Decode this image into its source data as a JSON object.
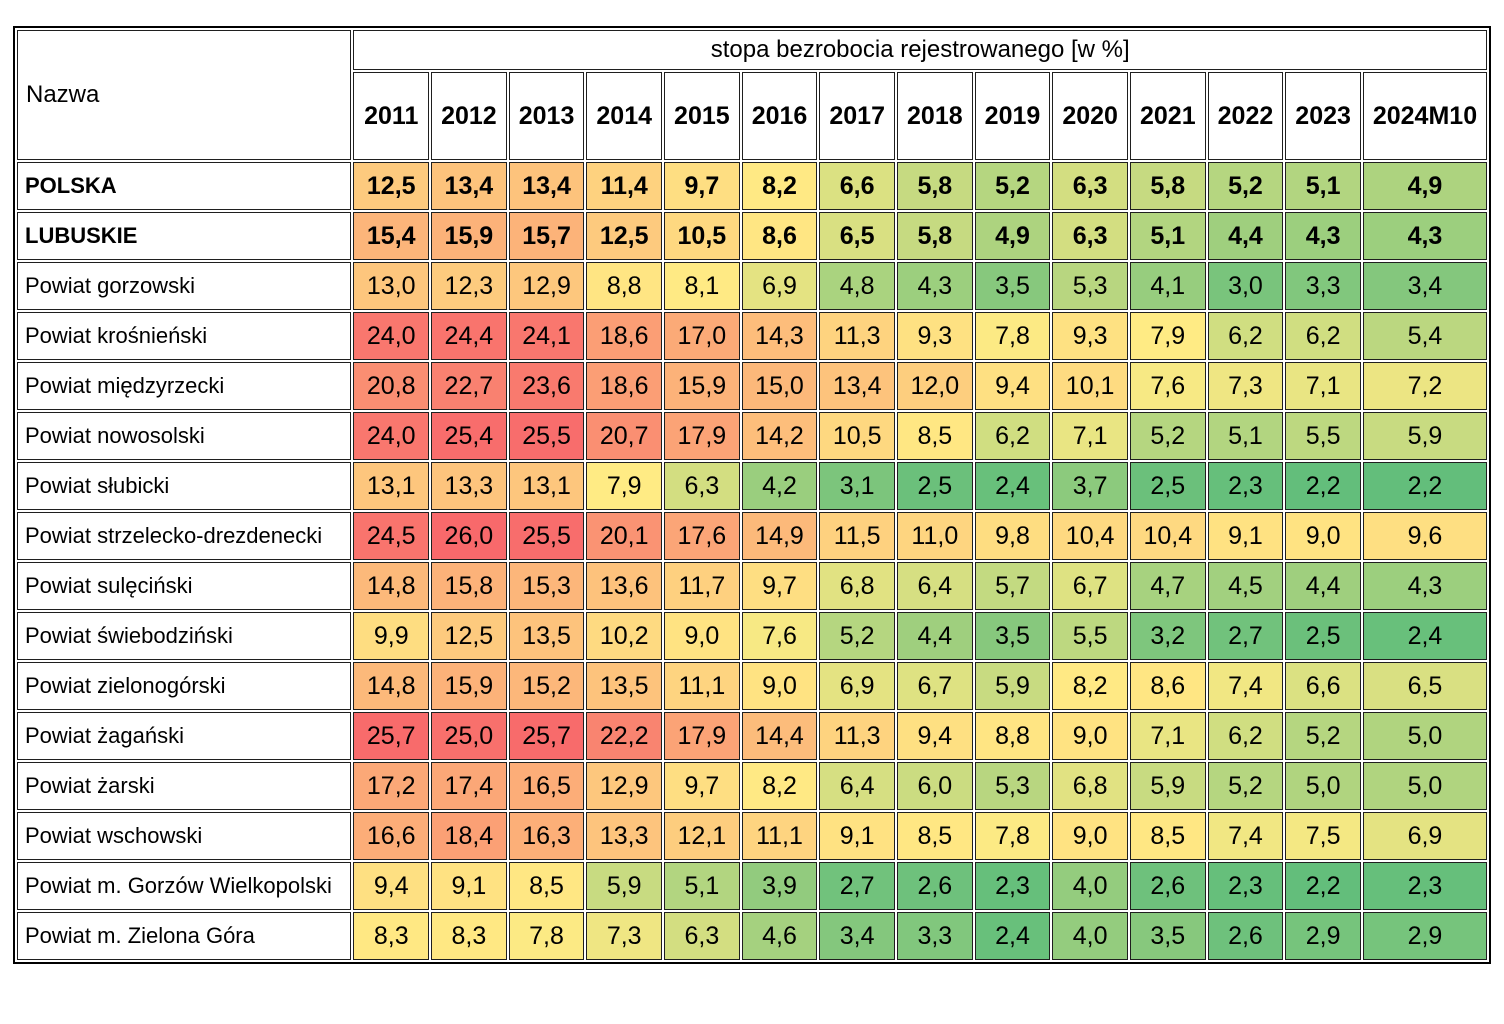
{
  "chart_data": {
    "type": "heatmap",
    "title": "stopa bezrobocia rejestrowanego [w %]",
    "row_header_label": "Nazwa",
    "x_labels": [
      "2011",
      "2012",
      "2013",
      "2014",
      "2015",
      "2016",
      "2017",
      "2018",
      "2019",
      "2020",
      "2021",
      "2022",
      "2023",
      "2024M10"
    ],
    "rows": [
      {
        "name": "POLSKA",
        "bold": true,
        "values": [
          "12,5",
          "13,4",
          "13,4",
          "11,4",
          "9,7",
          "8,2",
          "6,6",
          "5,8",
          "5,2",
          "6,3",
          "5,8",
          "5,2",
          "5,1",
          "4,9"
        ]
      },
      {
        "name": "LUBUSKIE",
        "bold": true,
        "values": [
          "15,4",
          "15,9",
          "15,7",
          "12,5",
          "10,5",
          "8,6",
          "6,5",
          "5,8",
          "4,9",
          "6,3",
          "5,1",
          "4,4",
          "4,3",
          "4,3"
        ]
      },
      {
        "name": "Powiat gorzowski",
        "bold": false,
        "values": [
          "13,0",
          "12,3",
          "12,9",
          "8,8",
          "8,1",
          "6,9",
          "4,8",
          "4,3",
          "3,5",
          "5,3",
          "4,1",
          "3,0",
          "3,3",
          "3,4"
        ]
      },
      {
        "name": "Powiat krośnieński",
        "bold": false,
        "values": [
          "24,0",
          "24,4",
          "24,1",
          "18,6",
          "17,0",
          "14,3",
          "11,3",
          "9,3",
          "7,8",
          "9,3",
          "7,9",
          "6,2",
          "6,2",
          "5,4"
        ]
      },
      {
        "name": "Powiat międzyrzecki",
        "bold": false,
        "values": [
          "20,8",
          "22,7",
          "23,6",
          "18,6",
          "15,9",
          "15,0",
          "13,4",
          "12,0",
          "9,4",
          "10,1",
          "7,6",
          "7,3",
          "7,1",
          "7,2"
        ]
      },
      {
        "name": "Powiat nowosolski",
        "bold": false,
        "values": [
          "24,0",
          "25,4",
          "25,5",
          "20,7",
          "17,9",
          "14,2",
          "10,5",
          "8,5",
          "6,2",
          "7,1",
          "5,2",
          "5,1",
          "5,5",
          "5,9"
        ]
      },
      {
        "name": "Powiat słubicki",
        "bold": false,
        "values": [
          "13,1",
          "13,3",
          "13,1",
          "7,9",
          "6,3",
          "4,2",
          "3,1",
          "2,5",
          "2,4",
          "3,7",
          "2,5",
          "2,3",
          "2,2",
          "2,2"
        ]
      },
      {
        "name": "Powiat strzelecko-drezdenecki",
        "bold": false,
        "values": [
          "24,5",
          "26,0",
          "25,5",
          "20,1",
          "17,6",
          "14,9",
          "11,5",
          "11,0",
          "9,8",
          "10,4",
          "10,4",
          "9,1",
          "9,0",
          "9,6"
        ]
      },
      {
        "name": "Powiat sulęciński",
        "bold": false,
        "values": [
          "14,8",
          "15,8",
          "15,3",
          "13,6",
          "11,7",
          "9,7",
          "6,8",
          "6,4",
          "5,7",
          "6,7",
          "4,7",
          "4,5",
          "4,4",
          "4,3"
        ]
      },
      {
        "name": "Powiat świebodziński",
        "bold": false,
        "values": [
          "9,9",
          "12,5",
          "13,5",
          "10,2",
          "9,0",
          "7,6",
          "5,2",
          "4,4",
          "3,5",
          "5,5",
          "3,2",
          "2,7",
          "2,5",
          "2,4"
        ]
      },
      {
        "name": "Powiat zielonogórski",
        "bold": false,
        "values": [
          "14,8",
          "15,9",
          "15,2",
          "13,5",
          "11,1",
          "9,0",
          "6,9",
          "6,7",
          "5,9",
          "8,2",
          "8,6",
          "7,4",
          "6,6",
          "6,5"
        ]
      },
      {
        "name": "Powiat żagański",
        "bold": false,
        "values": [
          "25,7",
          "25,0",
          "25,7",
          "22,2",
          "17,9",
          "14,4",
          "11,3",
          "9,4",
          "8,8",
          "9,0",
          "7,1",
          "6,2",
          "5,2",
          "5,0"
        ]
      },
      {
        "name": "Powiat żarski",
        "bold": false,
        "values": [
          "17,2",
          "17,4",
          "16,5",
          "12,9",
          "9,7",
          "8,2",
          "6,4",
          "6,0",
          "5,3",
          "6,8",
          "5,9",
          "5,2",
          "5,0",
          "5,0"
        ]
      },
      {
        "name": "Powiat wschowski",
        "bold": false,
        "values": [
          "16,6",
          "18,4",
          "16,3",
          "13,3",
          "12,1",
          "11,1",
          "9,1",
          "8,5",
          "7,8",
          "9,0",
          "8,5",
          "7,4",
          "7,5",
          "6,9"
        ]
      },
      {
        "name": "Powiat m. Gorzów Wielkopolski",
        "bold": false,
        "values": [
          "9,4",
          "9,1",
          "8,5",
          "5,9",
          "5,1",
          "3,9",
          "2,7",
          "2,6",
          "2,3",
          "4,0",
          "2,6",
          "2,3",
          "2,2",
          "2,3"
        ]
      },
      {
        "name": "Powiat m. Zielona Góra",
        "bold": false,
        "values": [
          "8,3",
          "8,3",
          "7,8",
          "7,3",
          "6,3",
          "4,6",
          "3,4",
          "3,3",
          "2,4",
          "4,0",
          "3,5",
          "2,6",
          "2,9",
          "2,9"
        ]
      }
    ],
    "color_scale": {
      "min_color": "#63BE7B",
      "mid_color": "#FFEB84",
      "max_color": "#F8696B",
      "midpoint": "50th percentile"
    },
    "layout_hints": {
      "grid": "on",
      "decimal_separator": ","
    }
  }
}
